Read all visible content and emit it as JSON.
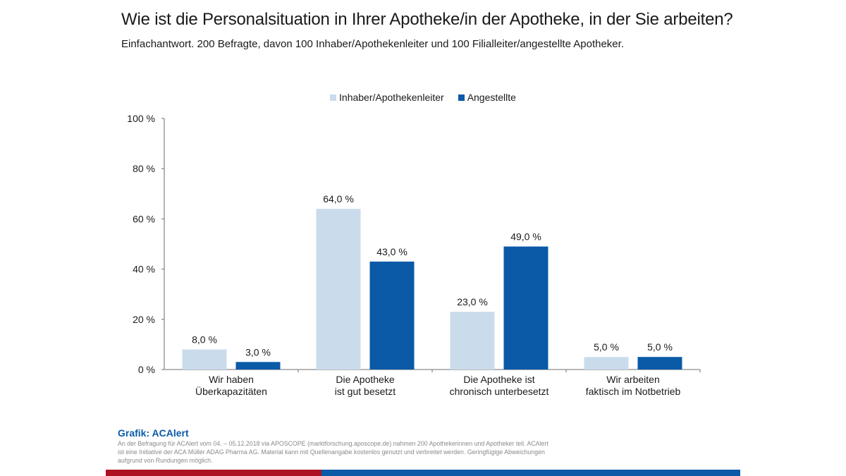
{
  "colors": {
    "series_light": "#cadcec",
    "series_dark": "#0b5aa8",
    "axis": "#8c8c8c",
    "source_title": "#0b5aa8",
    "footer_red": "#ac1222",
    "footer_blue": "#0b5aa8"
  },
  "source": {
    "title": "Grafik: ACAlert",
    "note": "An der Befragung für ACAlert vom 04. – 05.12.2018 via APOSCOPE (marktforschung.aposcope.de) nahmen 200 Apothekerinnen und Apotheker teil. ACAlert ist eine Initiative der ACA Müller ADAG Pharma AG. Material kann mit Quellenangabe kostenlos genutzt und verbreitet werden. Geringfügige Abweichungen aufgrund von Rundungen möglich."
  },
  "chart_data": {
    "type": "bar",
    "title": "Wie ist die Personalsituation in Ihrer Apotheke/in der Apotheke, in der Sie arbeiten?",
    "subtitle": "Einfachantwort. 200 Befragte, davon 100 Inhaber/Apothekenleiter und 100 Filialleiter/angestellte Apotheker.",
    "xlabel": "",
    "ylabel": "",
    "ylim": [
      0,
      100
    ],
    "yticks": [
      0,
      20,
      40,
      60,
      80,
      100
    ],
    "ytick_labels": [
      "0 %",
      "20 %",
      "40 %",
      "60 %",
      "80 %",
      "100 %"
    ],
    "grid": false,
    "legend_position": "top-center",
    "categories": [
      [
        "Wir haben",
        "Überkapazitäten"
      ],
      [
        "Die Apotheke",
        "ist gut besetzt"
      ],
      [
        "Die Apotheke ist",
        "chronisch unterbesetzt"
      ],
      [
        "Wir arbeiten",
        "faktisch im Notbetrieb"
      ]
    ],
    "series": [
      {
        "name": "Inhaber/Apothekenleiter",
        "color": "#cadcec",
        "values": [
          8.0,
          64.0,
          23.0,
          5.0
        ],
        "labels": [
          "8,0 %",
          "64,0 %",
          "23,0 %",
          "5,0 %"
        ]
      },
      {
        "name": "Angestellte",
        "color": "#0b5aa8",
        "values": [
          3.0,
          43.0,
          49.0,
          5.0
        ],
        "labels": [
          "3,0 %",
          "43,0 %",
          "49,0 %",
          "5,0 %"
        ]
      }
    ]
  }
}
